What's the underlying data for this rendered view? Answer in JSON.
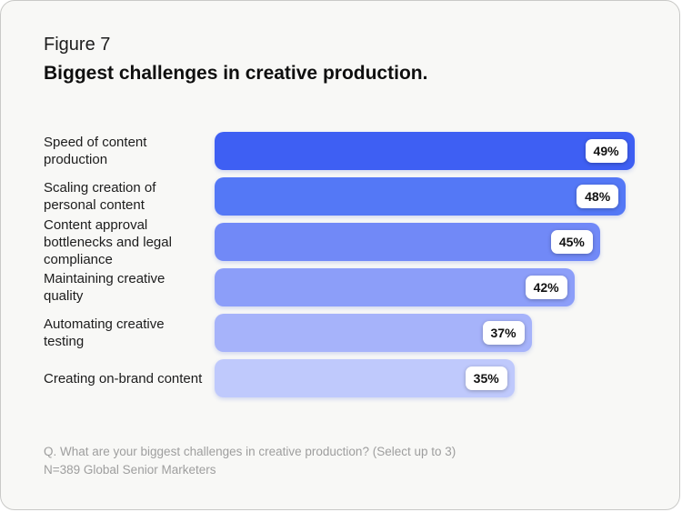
{
  "figure": {
    "eyebrow": "Figure 7",
    "title": "Biggest challenges in creative production."
  },
  "chart_data": {
    "type": "bar",
    "orientation": "horizontal",
    "title": "Biggest challenges in creative production.",
    "categories": [
      "Speed of content production",
      "Scaling creation of personal content",
      "Content approval bottlenecks and legal compliance",
      "Maintaining creative quality",
      "Automating creative testing",
      "Creating on-brand content"
    ],
    "values": [
      49,
      48,
      45,
      42,
      37,
      35
    ],
    "value_labels": [
      "49%",
      "48%",
      "45%",
      "42%",
      "37%",
      "35%"
    ],
    "unit": "%",
    "xlim": [
      0,
      50
    ],
    "grid": false,
    "legend": false,
    "value_label_position": "inside-end",
    "bar_colors": [
      "#3E5FF3",
      "#5478F6",
      "#7189F7",
      "#8C9EF9",
      "#A6B3FA",
      "#BFC9FC"
    ]
  },
  "footer": {
    "question": "Q. What are your biggest challenges in creative production? (Select up to 3)",
    "sample": "N=389 Global Senior Marketers"
  }
}
